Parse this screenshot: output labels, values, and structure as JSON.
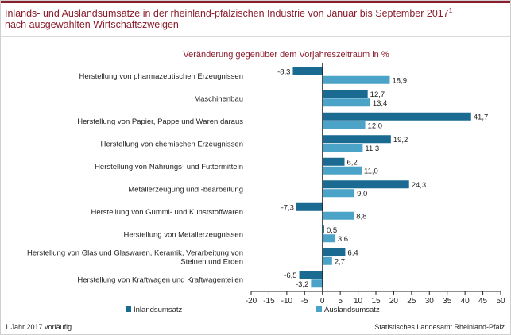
{
  "header": {
    "title": "Inlands- und Auslandsumsätze in der rheinland-pfälzischen Industrie von Januar bis September 2017",
    "title_sup": "1",
    "title_line2": "nach ausgewählten Wirtschaftszweigen"
  },
  "footer": {
    "footnote_sup": "1",
    "footnote": "Jahr 2017 vorläufig.",
    "source": "Statistisches Landesamt Rheinland-Pfalz"
  },
  "colors": {
    "accent": "#8b1d2c",
    "inland": "#1a6a92",
    "ausland": "#4ba3c7"
  },
  "chart_data": {
    "type": "bar",
    "orientation": "horizontal",
    "title": "Veränderung gegenüber dem Vorjahreszeitraum in %",
    "categories": [
      "Herstellung von pharmazeutischen Erzeugnissen",
      "Maschinenbau",
      "Herstellung von Papier, Pappe und Waren daraus",
      "Herstellung von chemischen Erzeugnissen",
      "Herstellung von Nahrungs- und Futtermitteln",
      "Metallerzeugung und -bearbeitung",
      "Herstellung von Gummi- und Kunststoffwaren",
      "Herstellung von Metallerzeugnissen",
      "Herstellung von Glas und Glaswaren, Keramik, Verarbeitung von Steinen und Erden",
      "Herstellung von Kraftwagen und Kraftwagenteilen"
    ],
    "category_lines": [
      [
        "Herstellung von pharmazeutischen Erzeugnissen"
      ],
      [
        "Maschinenbau"
      ],
      [
        "Herstellung von Papier, Pappe und Waren daraus"
      ],
      [
        "Herstellung von chemischen Erzeugnissen"
      ],
      [
        "Herstellung von Nahrungs- und Futtermitteln"
      ],
      [
        "Metallerzeugung und -bearbeitung"
      ],
      [
        "Herstellung von Gummi- und Kunststoffwaren"
      ],
      [
        "Herstellung von Metallerzeugnissen"
      ],
      [
        "Herstellung von Glas und Glaswaren, Keramik, Verarbeitung von",
        "Steinen und Erden"
      ],
      [
        "Herstellung von Kraftwagen und Kraftwagenteilen"
      ]
    ],
    "series": [
      {
        "name": "Inlandsumsatz",
        "values": [
          -8.3,
          12.7,
          41.7,
          19.2,
          6.2,
          24.3,
          -7.3,
          0.5,
          6.4,
          -6.5
        ],
        "labels": [
          "-8,3",
          "12,7",
          "41,7",
          "19,2",
          "6,2",
          "24,3",
          "-7,3",
          "0,5",
          "6,4",
          "-6,5"
        ]
      },
      {
        "name": "Auslandsumsatz",
        "values": [
          18.9,
          13.4,
          12.0,
          11.3,
          11.0,
          9.0,
          8.8,
          3.6,
          2.7,
          -3.2
        ],
        "labels": [
          "18,9",
          "13,4",
          "12,0",
          "11,3",
          "11,0",
          "9,0",
          "8,8",
          "3,6",
          "2,7",
          "-3,2"
        ]
      }
    ],
    "xlim": [
      -20,
      50
    ],
    "xticks": [
      -20,
      -15,
      -10,
      -5,
      0,
      5,
      10,
      15,
      20,
      25,
      30,
      35,
      40,
      45,
      50
    ],
    "xlabel": "",
    "ylabel": "",
    "grid": false,
    "legend": "bottom"
  }
}
